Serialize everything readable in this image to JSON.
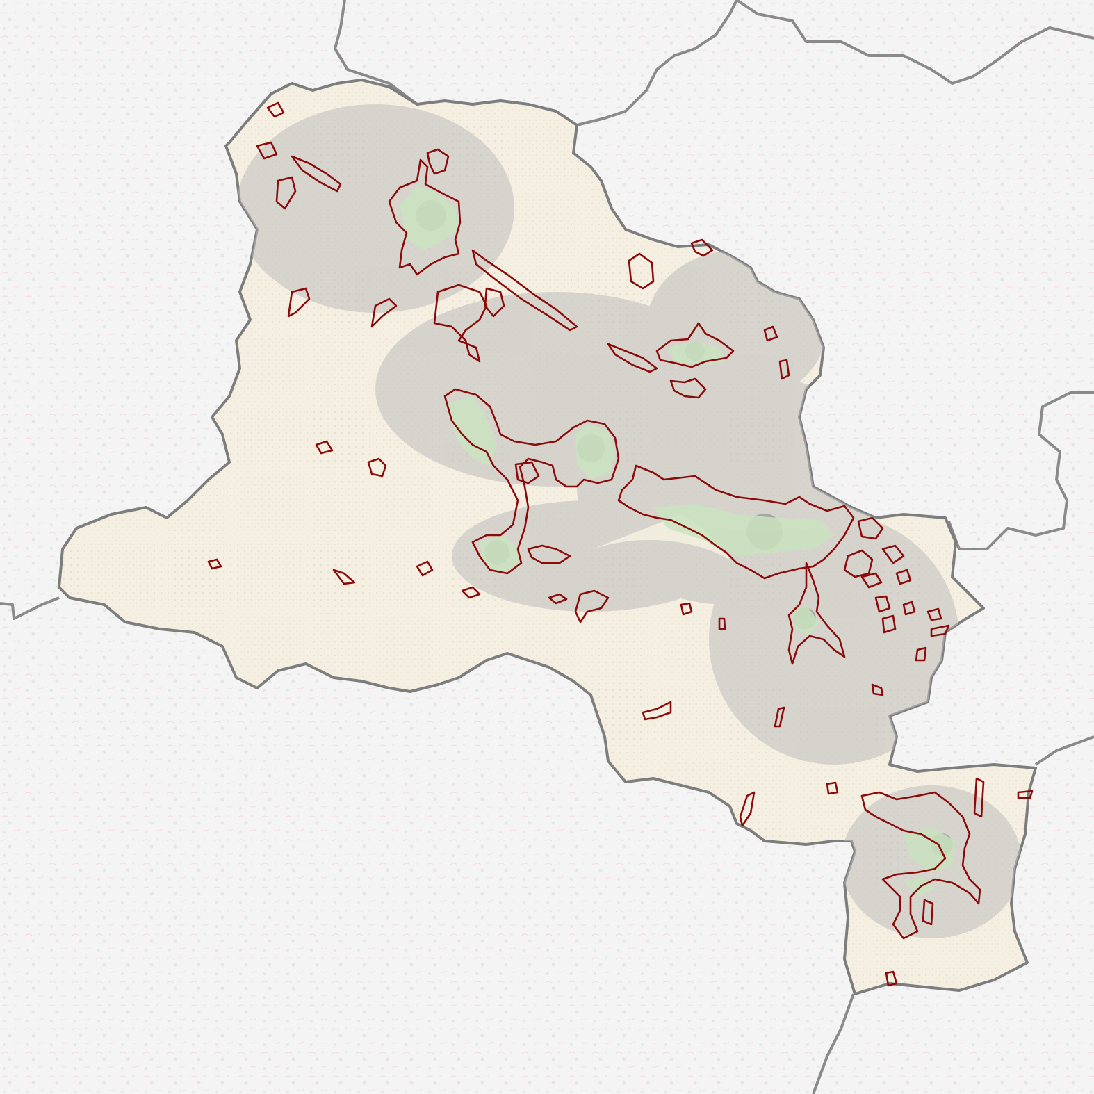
{
  "map": {
    "kind": "regional-map",
    "colors": {
      "background": "#f4f4f4",
      "outside_texture": "#e8e8e8",
      "outside_outline": "#f0d6da",
      "region_fill": "#f4efe0",
      "region_border": "#7d7d7d",
      "neighbor_border": "#8a8a8a",
      "built_up": "#bdbdbd",
      "built_up_dark": "#6e6e6e",
      "urban_core": "#c9e3bf",
      "cluster_outline": "#8b0a0a"
    },
    "layers": [
      "neighbor-borders",
      "outside-areas",
      "region",
      "built-up-areas",
      "urban-cores",
      "cluster-outlines"
    ]
  }
}
